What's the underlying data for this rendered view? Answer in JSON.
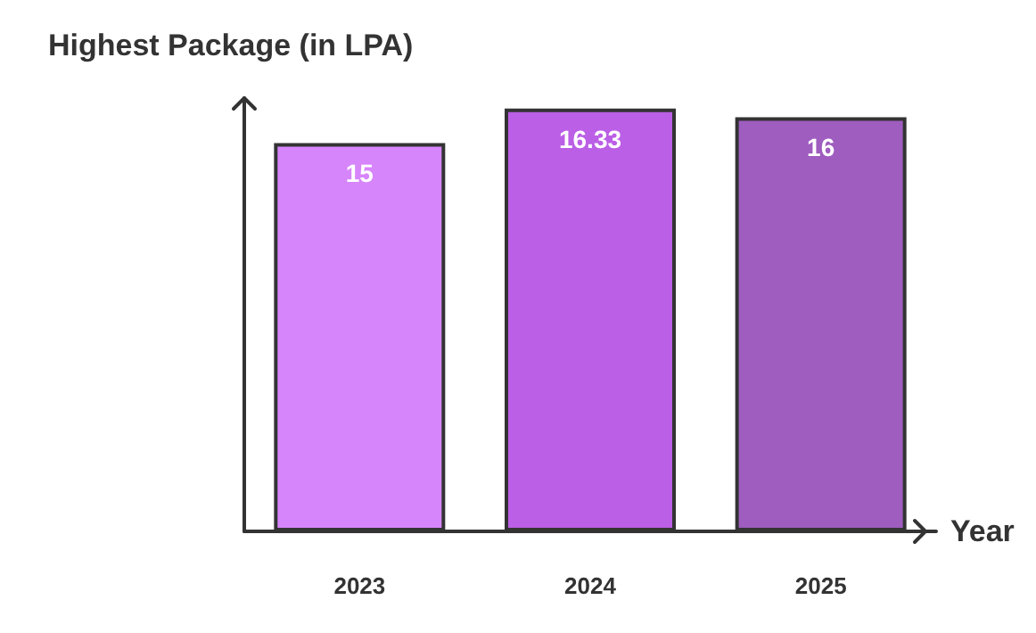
{
  "chart_data": {
    "type": "bar",
    "title": "Highest Package (in LPA)",
    "xlabel": "Year",
    "categories": [
      "2023",
      "2024",
      "2025"
    ],
    "values": [
      15,
      16.33,
      16
    ],
    "colors": [
      "#d785fb",
      "#bb5fe6",
      "#9f5dbf"
    ],
    "data_labels": true,
    "grid": false
  }
}
